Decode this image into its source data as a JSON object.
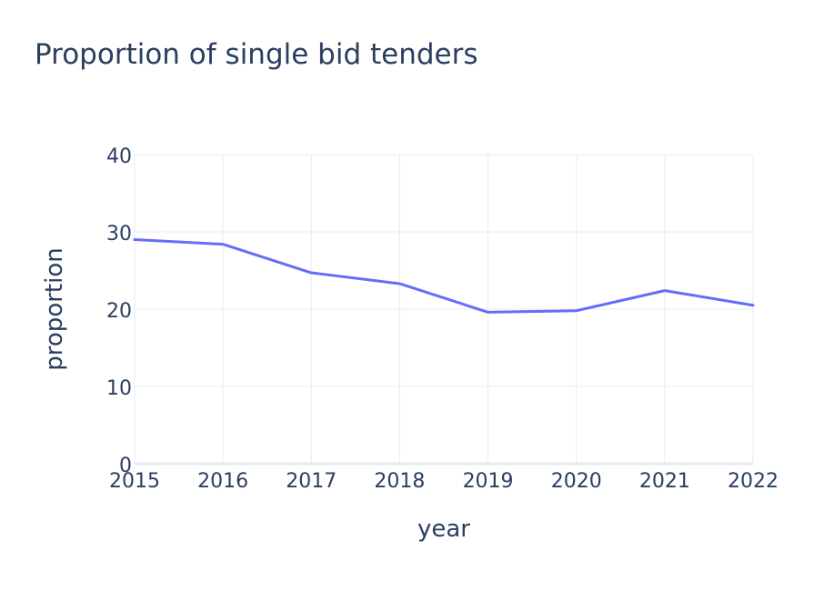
{
  "chart_data": {
    "type": "line",
    "title": "Proportion of single bid tenders",
    "xlabel": "year",
    "ylabel": "proportion",
    "x": [
      2015,
      2016,
      2017,
      2018,
      2019,
      2020,
      2021,
      2022
    ],
    "series": [
      {
        "name": "proportion",
        "values": [
          29.0,
          28.4,
          24.7,
          23.3,
          19.6,
          19.8,
          22.4,
          20.5
        ],
        "color": "#636EFA"
      }
    ],
    "xlim": [
      2015,
      2022
    ],
    "ylim": [
      0,
      40
    ],
    "yticks": [
      0,
      10,
      20,
      30,
      40
    ],
    "xticks": [
      2015,
      2016,
      2017,
      2018,
      2019,
      2020,
      2021,
      2022
    ],
    "grid": true,
    "legend": "none"
  },
  "colors": {
    "line": "#636EFA",
    "grid": "#E5ECF6",
    "text": "#2A3F5F",
    "background": "#FFFFFF"
  }
}
